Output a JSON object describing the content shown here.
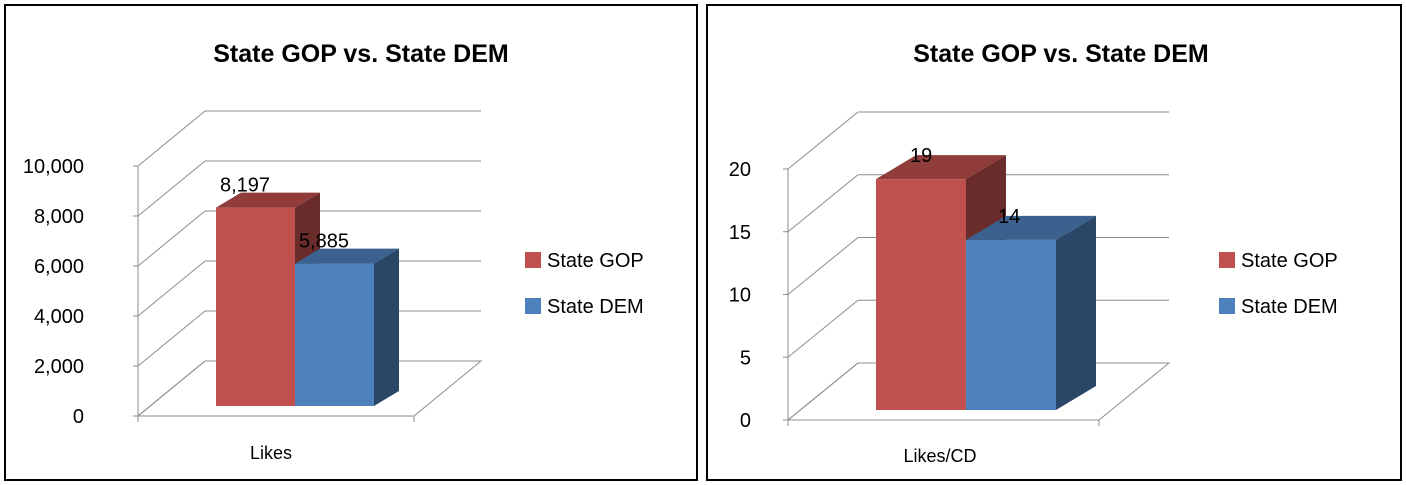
{
  "chart_data": [
    {
      "type": "bar",
      "title": "State GOP vs. State DEM",
      "categories": [
        "Likes"
      ],
      "series": [
        {
          "name": "State GOP",
          "values": [
            8197
          ],
          "label": "8,197",
          "color": "#c0504d"
        },
        {
          "name": "State DEM",
          "values": [
            5885
          ],
          "label": "5,885",
          "color": "#4f81bd"
        }
      ],
      "yticks": [
        "0",
        "2,000",
        "4,000",
        "6,000",
        "8,000",
        "10,000"
      ],
      "ylim": [
        0,
        10000
      ],
      "grid": true,
      "legend": "right",
      "style": "3d-clustered-column"
    },
    {
      "type": "bar",
      "title": "State GOP vs. State DEM",
      "categories": [
        "Likes/CD"
      ],
      "series": [
        {
          "name": "State GOP",
          "values": [
            19
          ],
          "label": "19",
          "color": "#c0504d"
        },
        {
          "name": "State DEM",
          "values": [
            14
          ],
          "label": "14",
          "color": "#4f81bd"
        }
      ],
      "yticks": [
        "0",
        "5",
        "10",
        "15",
        "20"
      ],
      "ylim": [
        0,
        20
      ],
      "grid": true,
      "legend": "right",
      "style": "3d-clustered-column"
    }
  ]
}
